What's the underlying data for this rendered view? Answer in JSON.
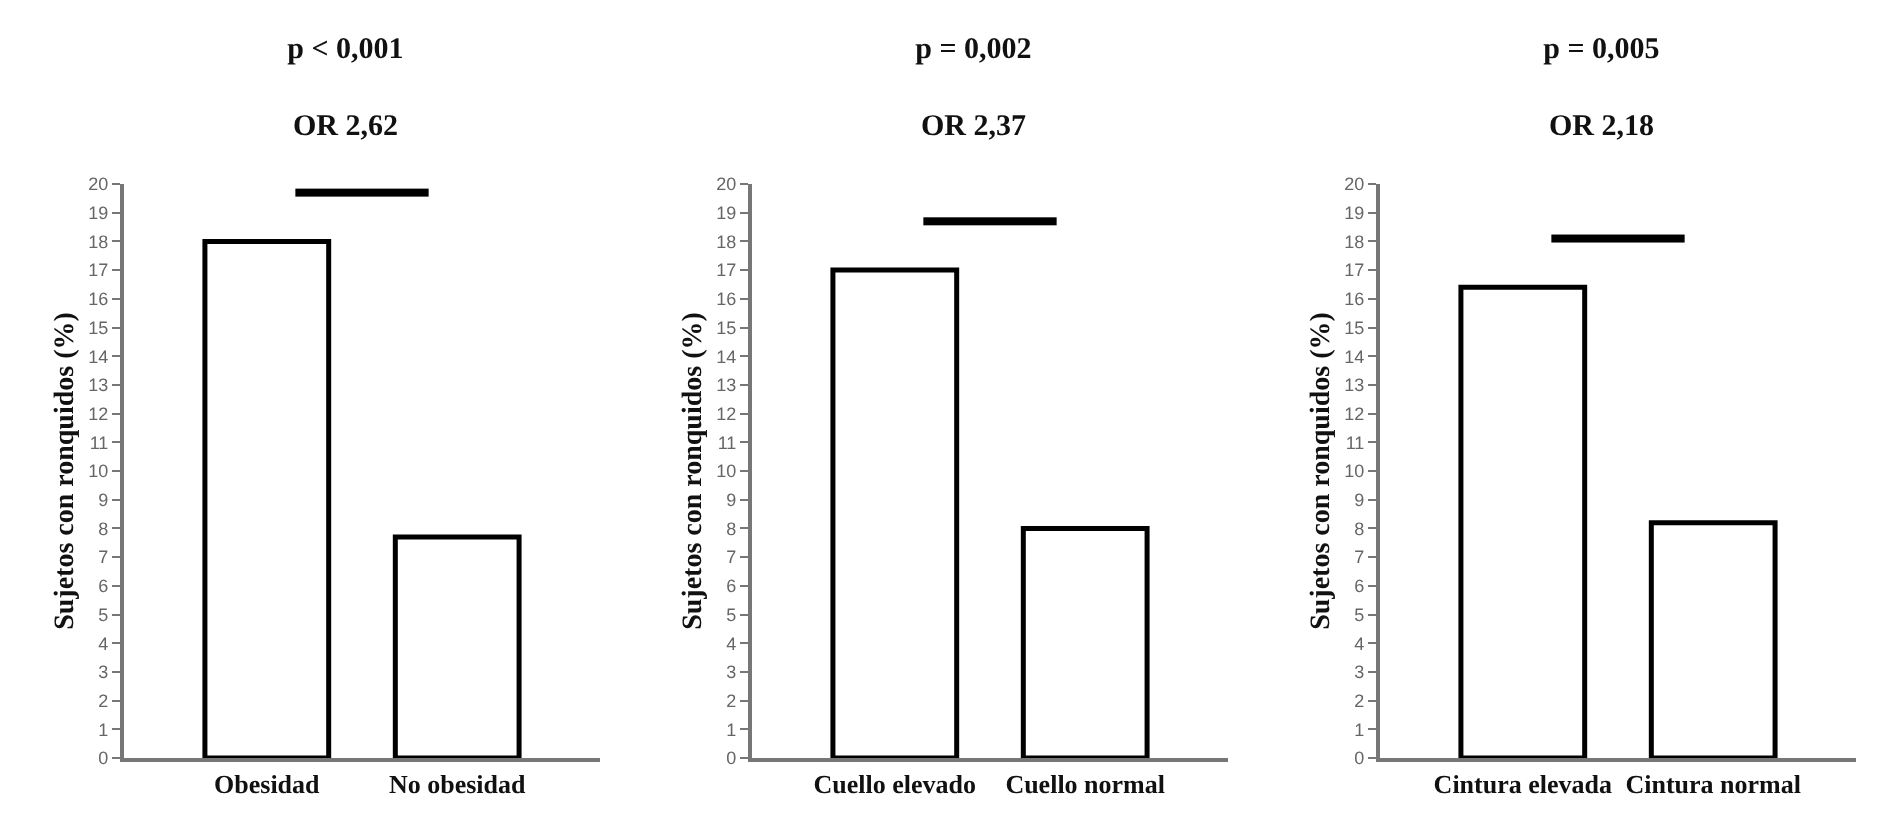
{
  "chart_data": [
    {
      "type": "bar",
      "title": "p < 0,001",
      "subtitle": "OR 2,62",
      "ylabel": "Sujetos con ronquidos (%)",
      "categories": [
        "Obesidad",
        "No obesidad"
      ],
      "values": [
        18,
        7.7
      ],
      "color": "#ffffff",
      "ylim": [
        0,
        20
      ],
      "yticks": [
        0,
        1,
        2,
        3,
        4,
        5,
        6,
        7,
        8,
        9,
        10,
        11,
        12,
        13,
        14,
        15,
        16,
        17,
        18,
        19,
        20
      ],
      "grid": false,
      "legend": false
    },
    {
      "type": "bar",
      "title": "p = 0,002",
      "subtitle": "OR 2,37",
      "ylabel": "Sujetos con ronquidos (%)",
      "categories": [
        "Cuello elevado",
        "Cuello normal"
      ],
      "values": [
        17,
        8
      ],
      "color": "#ffffff",
      "ylim": [
        0,
        20
      ],
      "yticks": [
        0,
        1,
        2,
        3,
        4,
        5,
        6,
        7,
        8,
        9,
        10,
        11,
        12,
        13,
        14,
        15,
        16,
        17,
        18,
        19,
        20
      ],
      "grid": false,
      "legend": false
    },
    {
      "type": "bar",
      "title": "p = 0,005",
      "subtitle": "OR 2,18",
      "ylabel": "Sujetos con ronquidos (%)",
      "categories": [
        "Cintura elevada",
        "Cintura normal"
      ],
      "values": [
        16.4,
        8.2
      ],
      "color": "#ffffff",
      "ylim": [
        0,
        20
      ],
      "yticks": [
        0,
        1,
        2,
        3,
        4,
        5,
        6,
        7,
        8,
        9,
        10,
        11,
        12,
        13,
        14,
        15,
        16,
        17,
        18,
        19,
        20
      ],
      "grid": false,
      "legend": false
    }
  ]
}
